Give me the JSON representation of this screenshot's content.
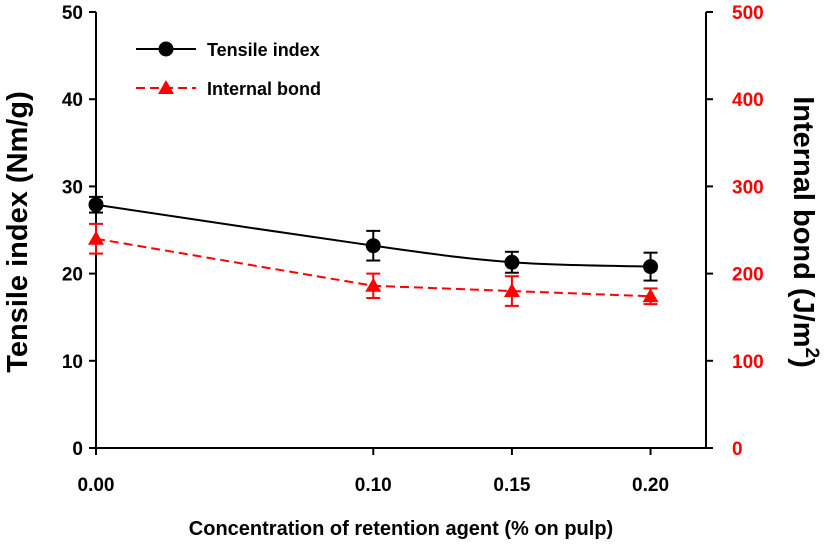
{
  "chart_data": {
    "type": "line",
    "title": "",
    "xlabel": "Concentration of retention agent (% on pulp)",
    "ylabel": "Tensile index (Nm/g)",
    "y2label_main": "Internal bond (J/m",
    "y2label_sup": "2",
    "y2label_close": ")",
    "x": [
      0.0,
      0.1,
      0.15,
      0.2
    ],
    "x_ticks": [
      0.0,
      0.1,
      0.15,
      0.2
    ],
    "x_tick_labels": [
      "0.00",
      "0.10",
      "0.15",
      "0.20"
    ],
    "xlim": [
      0.0,
      0.22
    ],
    "ylim": [
      0,
      50
    ],
    "y_ticks": [
      0,
      10,
      20,
      30,
      40,
      50
    ],
    "y_tick_labels": [
      "0",
      "10",
      "20",
      "30",
      "40",
      "50"
    ],
    "y2lim": [
      0,
      500
    ],
    "y2_ticks": [
      0,
      100,
      200,
      300,
      400,
      500
    ],
    "y2_tick_labels": [
      "0",
      "100",
      "200",
      "300",
      "400",
      "500"
    ],
    "legend_position": "top-left",
    "grid": false,
    "series": [
      {
        "name": "Tensile index",
        "axis": "left",
        "color": "#000000",
        "dash": "solid",
        "marker": "circle",
        "values": [
          27.9,
          23.2,
          21.3,
          20.8
        ],
        "errors": [
          0.9,
          1.7,
          1.2,
          1.6
        ]
      },
      {
        "name": "Internal bond",
        "axis": "right",
        "color": "#ff0000",
        "dash": "dashed",
        "marker": "triangle",
        "values": [
          240,
          186,
          180,
          174
        ],
        "errors": [
          17,
          14,
          17,
          9
        ]
      }
    ],
    "colors": {
      "left_axis": "#000000",
      "right_axis": "#ff0000"
    }
  }
}
